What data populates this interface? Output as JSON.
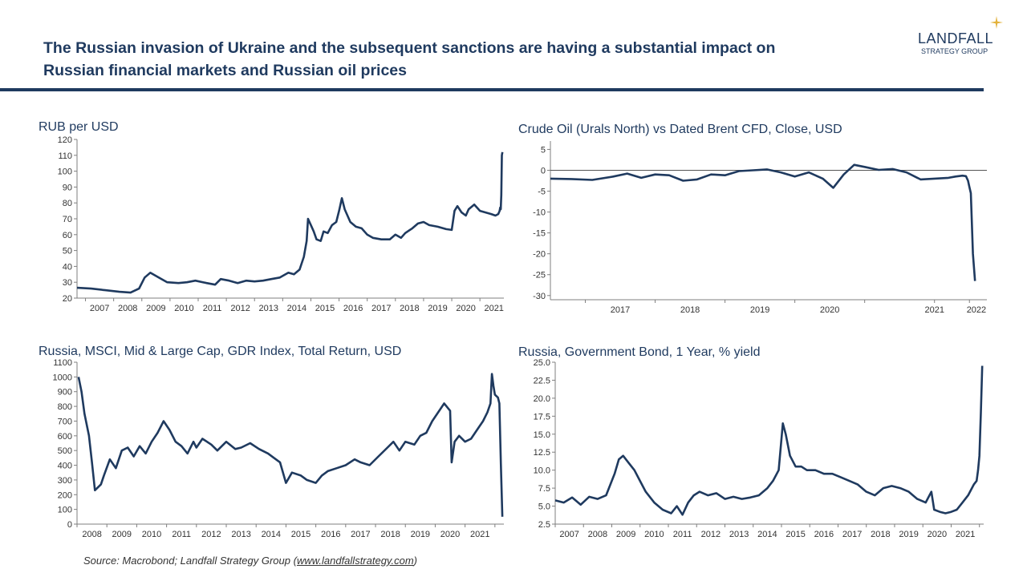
{
  "header": {
    "title_line1": "The Russian invasion of Ukraine and the subsequent sanctions are having a substantial impact on",
    "title_line2": "Russian financial markets and Russian oil prices"
  },
  "logo": {
    "name": "LANDFALL",
    "tagline": "STRATEGY GROUP",
    "accent_color": "#e3b23c"
  },
  "source": {
    "prefix": "Source: Macrobond; Landfall Strategy Group (",
    "link": "www.landfallstrategy.com",
    "suffix": ")"
  },
  "colors": {
    "series": "#1f3a5f",
    "axis": "#7f7f7f",
    "zero_line": "#555555"
  },
  "chart_data": [
    {
      "id": "rub",
      "type": "line",
      "title": "RUB per USD",
      "xlabel": "",
      "ylabel": "",
      "xlim": [
        2006.7,
        2021.85
      ],
      "ylim": [
        20,
        120
      ],
      "yticks": [
        20,
        30,
        40,
        50,
        60,
        70,
        80,
        90,
        100,
        110,
        120
      ],
      "ytick_labels": [
        "20",
        "30",
        "40",
        "50",
        "60",
        "70",
        "80",
        "90",
        "100",
        "110",
        "120"
      ],
      "xticks": [
        2007.5,
        2008.5,
        2009.5,
        2010.5,
        2011.5,
        2012.5,
        2013.5,
        2014.5,
        2015.5,
        2016.5,
        2017.5,
        2018.5,
        2019.5,
        2020.5,
        2021.5
      ],
      "xtick_labels": [
        "2007",
        "2008",
        "2009",
        "2010",
        "2011",
        "2012",
        "2013",
        "2014",
        "2015",
        "2016",
        "2017",
        "2018",
        "2019",
        "2020",
        "2021"
      ],
      "series": [
        {
          "name": "RUB per USD",
          "x": [
            2006.7,
            2007.2,
            2007.7,
            2008.2,
            2008.6,
            2008.9,
            2009.1,
            2009.3,
            2009.6,
            2009.9,
            2010.3,
            2010.6,
            2010.9,
            2011.3,
            2011.6,
            2011.8,
            2012.1,
            2012.4,
            2012.7,
            2013.0,
            2013.3,
            2013.6,
            2013.9,
            2014.2,
            2014.4,
            2014.6,
            2014.75,
            2014.85,
            2014.9,
            2015.0,
            2015.1,
            2015.2,
            2015.35,
            2015.45,
            2015.6,
            2015.75,
            2015.9,
            2016.0,
            2016.1,
            2016.2,
            2016.4,
            2016.6,
            2016.8,
            2017.0,
            2017.2,
            2017.5,
            2017.8,
            2018.0,
            2018.2,
            2018.35,
            2018.6,
            2018.8,
            2019.0,
            2019.2,
            2019.5,
            2019.8,
            2020.0,
            2020.1,
            2020.2,
            2020.35,
            2020.5,
            2020.6,
            2020.8,
            2021.0,
            2021.2,
            2021.4,
            2021.55,
            2021.65,
            2021.7,
            2021.72,
            2021.74,
            2021.76,
            2021.78,
            2021.8
          ],
          "values": [
            26.5,
            26,
            25,
            24,
            23.5,
            26,
            33,
            36,
            33,
            30,
            29.5,
            30,
            31,
            29.5,
            28.5,
            32,
            31,
            29.5,
            31,
            30.5,
            31,
            32,
            33,
            36,
            35,
            38,
            46,
            56,
            70,
            66,
            62,
            57,
            56,
            62,
            61,
            66,
            68,
            75,
            83,
            76,
            68,
            65,
            64,
            60,
            58,
            57,
            57,
            60,
            58,
            61,
            64,
            67,
            68,
            66,
            65,
            63.5,
            63,
            75,
            78,
            74,
            72,
            76,
            79,
            75,
            74,
            73,
            72,
            73,
            75,
            77,
            76,
            85,
            110,
            112
          ]
        }
      ]
    },
    {
      "id": "urals",
      "type": "line",
      "title": "Crude Oil (Urals North) vs Dated Brent CFD, Close, USD",
      "xlabel": "",
      "ylabel": "",
      "xlim": [
        2016.0,
        2022.25
      ],
      "ylim": [
        -31,
        7
      ],
      "zero_line": true,
      "yticks": [
        5,
        0,
        -5,
        -10,
        -15,
        -20,
        -25,
        -30
      ],
      "ytick_labels": [
        "5",
        "0",
        "-5",
        "-10",
        "-15",
        "-20",
        "-25",
        "-30"
      ],
      "xtick_marks": [
        2016.5,
        2017.5,
        2018.5,
        2019.5,
        2020.5,
        2021.5,
        2022.0
      ],
      "xticks": [
        2017.0,
        2018.0,
        2019.0,
        2020.0,
        2021.5,
        2022.1
      ],
      "xtick_labels": [
        "2017",
        "2018",
        "2019",
        "2020",
        "2021",
        "2022"
      ],
      "series": [
        {
          "name": "Urals vs Brent",
          "x": [
            2016.0,
            2016.3,
            2016.6,
            2016.9,
            2017.1,
            2017.3,
            2017.5,
            2017.7,
            2017.9,
            2018.1,
            2018.3,
            2018.5,
            2018.7,
            2018.9,
            2019.1,
            2019.3,
            2019.5,
            2019.7,
            2019.9,
            2020.05,
            2020.2,
            2020.35,
            2020.5,
            2020.7,
            2020.9,
            2021.1,
            2021.3,
            2021.5,
            2021.7,
            2021.8,
            2021.9,
            2021.95,
            2021.98,
            2022.0,
            2022.02,
            2022.05,
            2022.08
          ],
          "values": [
            -2,
            -2.1,
            -2.3,
            -1.5,
            -0.8,
            -1.8,
            -1,
            -1.2,
            -2.5,
            -2.2,
            -1,
            -1.2,
            -0.2,
            0,
            0.2,
            -0.5,
            -1.5,
            -0.5,
            -2,
            -4.2,
            -1,
            1.3,
            0.8,
            0.1,
            0.3,
            -0.5,
            -2.2,
            -2,
            -1.8,
            -1.5,
            -1.3,
            -1.4,
            -2.5,
            -4,
            -5.5,
            -20,
            -26.5
          ]
        }
      ]
    },
    {
      "id": "msci",
      "type": "line",
      "title": "Russia, MSCI, Mid & Large Cap, GDR Index, Total Return, USD",
      "xlabel": "",
      "ylabel": "",
      "xlim": [
        2007.6,
        2021.9
      ],
      "ylim": [
        0,
        1100
      ],
      "yticks": [
        0,
        100,
        200,
        300,
        400,
        500,
        600,
        700,
        800,
        900,
        1000,
        1100
      ],
      "ytick_labels": [
        "0",
        "100",
        "200",
        "300",
        "400",
        "500",
        "600",
        "700",
        "800",
        "900",
        "1000",
        "1100"
      ],
      "xticks": [
        2008.1,
        2009.1,
        2010.1,
        2011.1,
        2012.1,
        2013.1,
        2014.1,
        2015.1,
        2016.1,
        2017.1,
        2018.1,
        2019.1,
        2020.1,
        2021.1
      ],
      "xtick_labels": [
        "2008",
        "2009",
        "2010",
        "2011",
        "2012",
        "2013",
        "2014",
        "2015",
        "2016",
        "2017",
        "2018",
        "2019",
        "2020",
        "2021"
      ],
      "series": [
        {
          "name": "MSCI Russia",
          "x": [
            2007.65,
            2007.75,
            2007.85,
            2008.0,
            2008.1,
            2008.2,
            2008.4,
            2008.5,
            2008.7,
            2008.9,
            2009.1,
            2009.3,
            2009.5,
            2009.7,
            2009.9,
            2010.1,
            2010.3,
            2010.5,
            2010.7,
            2010.9,
            2011.1,
            2011.3,
            2011.5,
            2011.6,
            2011.8,
            2012.1,
            2012.3,
            2012.6,
            2012.9,
            2013.1,
            2013.4,
            2013.7,
            2014.0,
            2014.2,
            2014.4,
            2014.6,
            2014.8,
            2015.1,
            2015.3,
            2015.6,
            2015.8,
            2016.0,
            2016.3,
            2016.6,
            2016.9,
            2017.1,
            2017.4,
            2017.7,
            2018.0,
            2018.2,
            2018.4,
            2018.6,
            2018.9,
            2019.1,
            2019.3,
            2019.5,
            2019.7,
            2019.9,
            2020.1,
            2020.15,
            2020.25,
            2020.4,
            2020.6,
            2020.8,
            2021.0,
            2021.2,
            2021.35,
            2021.45,
            2021.5,
            2021.55,
            2021.6,
            2021.7,
            2021.75,
            2021.8,
            2021.85
          ],
          "values": [
            1000,
            900,
            750,
            600,
            420,
            230,
            270,
            330,
            440,
            380,
            500,
            520,
            460,
            530,
            480,
            560,
            620,
            700,
            640,
            560,
            530,
            480,
            560,
            520,
            580,
            540,
            500,
            560,
            510,
            520,
            550,
            510,
            480,
            450,
            420,
            280,
            350,
            330,
            300,
            280,
            330,
            360,
            380,
            400,
            440,
            420,
            400,
            460,
            520,
            560,
            500,
            560,
            540,
            600,
            620,
            700,
            760,
            820,
            770,
            420,
            560,
            600,
            560,
            580,
            640,
            700,
            760,
            820,
            1020,
            940,
            880,
            860,
            820,
            400,
            50
          ]
        }
      ]
    },
    {
      "id": "bond",
      "type": "line",
      "title": "Russia, Government Bond, 1 Year, % yield",
      "xlabel": "",
      "ylabel": "",
      "xlim": [
        2006.7,
        2021.85
      ],
      "ylim": [
        2.5,
        25
      ],
      "yticks": [
        2.5,
        5.0,
        7.5,
        10.0,
        12.5,
        15.0,
        17.5,
        20.0,
        22.5,
        25.0
      ],
      "ytick_labels": [
        "2.5",
        "5.0",
        "7.5",
        "10.0",
        "12.5",
        "15.0",
        "17.5",
        "20.0",
        "22.5",
        "25.0"
      ],
      "xticks": [
        2007.2,
        2008.2,
        2009.2,
        2010.2,
        2011.2,
        2012.2,
        2013.2,
        2014.2,
        2015.2,
        2016.2,
        2017.2,
        2018.2,
        2019.2,
        2020.2,
        2021.2
      ],
      "xtick_labels": [
        "2007",
        "2008",
        "2009",
        "2010",
        "2011",
        "2012",
        "2013",
        "2014",
        "2015",
        "2016",
        "2017",
        "2018",
        "2019",
        "2020",
        "2021"
      ],
      "series": [
        {
          "name": "1Y yield",
          "x": [
            2006.7,
            2007.0,
            2007.3,
            2007.6,
            2007.9,
            2008.2,
            2008.5,
            2008.8,
            2008.95,
            2009.1,
            2009.3,
            2009.5,
            2009.7,
            2009.9,
            2010.2,
            2010.5,
            2010.8,
            2011.0,
            2011.2,
            2011.4,
            2011.6,
            2011.8,
            2012.1,
            2012.4,
            2012.7,
            2013.0,
            2013.3,
            2013.6,
            2013.9,
            2014.2,
            2014.4,
            2014.6,
            2014.75,
            2014.85,
            2015.0,
            2015.2,
            2015.4,
            2015.6,
            2015.9,
            2016.2,
            2016.5,
            2016.8,
            2017.1,
            2017.4,
            2017.7,
            2018.0,
            2018.3,
            2018.6,
            2018.9,
            2019.2,
            2019.5,
            2019.8,
            2020.0,
            2020.1,
            2020.3,
            2020.5,
            2020.7,
            2020.9,
            2021.1,
            2021.3,
            2021.5,
            2021.6,
            2021.65,
            2021.7,
            2021.75,
            2021.8
          ],
          "values": [
            5.8,
            5.5,
            6.2,
            5.2,
            6.3,
            6.0,
            6.5,
            9.5,
            11.5,
            12.0,
            11.0,
            10.0,
            8.5,
            7.0,
            5.5,
            4.5,
            4.0,
            5.0,
            3.8,
            5.5,
            6.5,
            7.0,
            6.5,
            6.8,
            6.0,
            6.3,
            6.0,
            6.2,
            6.5,
            7.5,
            8.5,
            10.0,
            16.5,
            15.0,
            12.0,
            10.5,
            10.5,
            10.0,
            10.0,
            9.5,
            9.5,
            9.0,
            8.5,
            8.0,
            7.0,
            6.5,
            7.5,
            7.8,
            7.5,
            7.0,
            6.0,
            5.5,
            7.0,
            4.5,
            4.2,
            4.0,
            4.2,
            4.5,
            5.5,
            6.5,
            8.0,
            8.5,
            10.0,
            12.0,
            18.0,
            24.5
          ]
        }
      ]
    }
  ]
}
